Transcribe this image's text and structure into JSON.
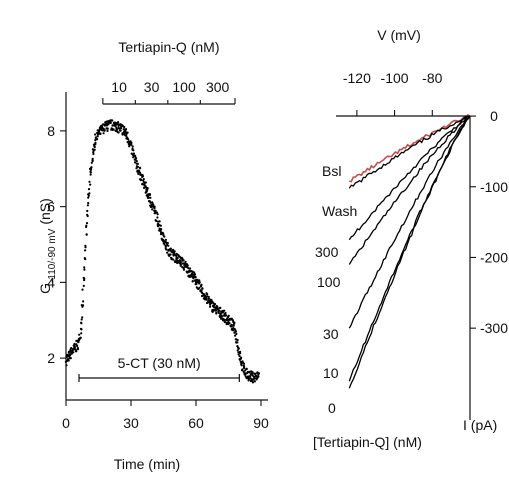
{
  "chart_data": [
    {
      "type": "scatter",
      "ylabel": "G -110/-90 mV (nS)",
      "ylabel_main": "G",
      "ylabel_sub": "-110/-90 mV",
      "ylabel_unit": "(nS)",
      "xlabel": "Time (min)",
      "xlim": [
        0,
        90
      ],
      "ylim": [
        1,
        9
      ],
      "xticks": [
        "0",
        "30",
        "60",
        "90"
      ],
      "yticks": [
        "2",
        "4",
        "6",
        "8"
      ],
      "grid": false,
      "color": "#000000",
      "bars": [
        {
          "label": "5-CT (30 nM)",
          "start": 6,
          "end": 80,
          "position": "below"
        },
        {
          "label": "Tertiapin-Q (nM)",
          "start": 17,
          "end": 78,
          "position": "above",
          "segments": [
            "10",
            "30",
            "100",
            "300"
          ],
          "segment_breaks": [
            17,
            32,
            47,
            62,
            78
          ]
        }
      ],
      "series": [
        {
          "points": [
            [
              0,
              1.95
            ],
            [
              2,
              2.1
            ],
            [
              4,
              2.25
            ],
            [
              6,
              2.4
            ],
            [
              7,
              2.9
            ],
            [
              8,
              3.8
            ],
            [
              9,
              4.9
            ],
            [
              10,
              5.9
            ],
            [
              11,
              6.7
            ],
            [
              12,
              7.2
            ],
            [
              13,
              7.6
            ],
            [
              14,
              7.85
            ],
            [
              16,
              8.0
            ],
            [
              18,
              8.1
            ],
            [
              20,
              8.15
            ],
            [
              22,
              8.15
            ],
            [
              24,
              8.1
            ],
            [
              26,
              8.05
            ],
            [
              28,
              7.9
            ],
            [
              30,
              7.6
            ],
            [
              32,
              7.2
            ],
            [
              34,
              6.9
            ],
            [
              36,
              6.6
            ],
            [
              38,
              6.3
            ],
            [
              40,
              6.0
            ],
            [
              42,
              5.7
            ],
            [
              44,
              5.35
            ],
            [
              46,
              5.0
            ],
            [
              48,
              4.8
            ],
            [
              50,
              4.7
            ],
            [
              52,
              4.6
            ],
            [
              54,
              4.5
            ],
            [
              56,
              4.35
            ],
            [
              58,
              4.2
            ],
            [
              60,
              4.05
            ],
            [
              62,
              3.85
            ],
            [
              64,
              3.65
            ],
            [
              66,
              3.5
            ],
            [
              68,
              3.35
            ],
            [
              70,
              3.25
            ],
            [
              72,
              3.15
            ],
            [
              74,
              3.05
            ],
            [
              76,
              2.95
            ],
            [
              78,
              2.75
            ],
            [
              79,
              2.45
            ],
            [
              80,
              2.15
            ],
            [
              81,
              1.9
            ],
            [
              82,
              1.7
            ],
            [
              83,
              1.6
            ],
            [
              84,
              1.55
            ],
            [
              86,
              1.5
            ],
            [
              88,
              1.5
            ],
            [
              89,
              1.55
            ]
          ]
        }
      ]
    },
    {
      "type": "line",
      "title": "V (mV)",
      "xlabel": "[Tertiapin-Q] (nM)",
      "ylabel": "I (pA)",
      "xlim": [
        -130,
        -60
      ],
      "ylim": [
        -420,
        10
      ],
      "xticks": [
        "-120",
        "-100",
        "-80"
      ],
      "yticks": [
        "0",
        "-100",
        "-200",
        "-300"
      ],
      "xaxis_position": "top",
      "yaxis_position": "right",
      "grid": false,
      "series": [
        {
          "name": "Bsl",
          "color": "#c0504d",
          "start": [
            -124,
            -92
          ],
          "end": [
            -60,
            0
          ]
        },
        {
          "name": "Wash",
          "color": "#000000",
          "start": [
            -124,
            -102
          ],
          "end": [
            -60,
            0
          ]
        },
        {
          "name": "300",
          "color": "#000000",
          "start": [
            -124,
            -175
          ],
          "end": [
            -60,
            0
          ]
        },
        {
          "name": "100",
          "color": "#000000",
          "start": [
            -124,
            -210
          ],
          "end": [
            -60,
            0
          ]
        },
        {
          "name": "30",
          "color": "#000000",
          "start": [
            -124,
            -300
          ],
          "end": [
            -60,
            0
          ]
        },
        {
          "name": "10",
          "color": "#000000",
          "start": [
            -124,
            -375
          ],
          "end": [
            -60,
            0
          ]
        },
        {
          "name": "0",
          "color": "#000000",
          "start": [
            -124,
            -385
          ],
          "end": [
            -60,
            0
          ]
        }
      ]
    }
  ]
}
